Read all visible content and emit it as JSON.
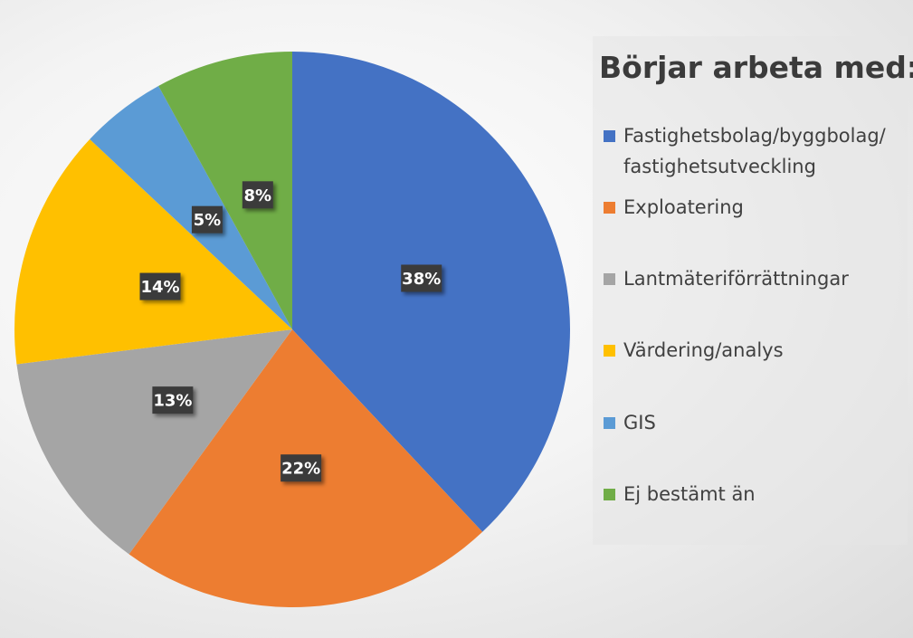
{
  "chart_data": {
    "type": "pie",
    "title": "Börjar arbeta med:",
    "categories": [
      "Fastighetsbolag/byggbolag/\nfastighetsutveckling",
      "Exploatering",
      "Lantmäteriförrättningar",
      "Värdering/analys",
      "GIS",
      "Ej bestämt än"
    ],
    "values": [
      38,
      22,
      13,
      14,
      5,
      8
    ],
    "labels": [
      "38%",
      "22%",
      "13%",
      "14%",
      "5%",
      "8%"
    ],
    "colors": [
      "#4472C4",
      "#ED7D31",
      "#A5A5A5",
      "#FFC000",
      "#5B9BD5",
      "#70AD47"
    ],
    "legend_position": "right"
  },
  "legend": {
    "items": [
      {
        "line1": "Fastighetsbolag/byggbolag/",
        "line2": "fastighetsutveckling"
      },
      {
        "line1": "Exploatering"
      },
      {
        "line1": "Lantmäteriförrättningar"
      },
      {
        "line1": "Värdering/analys"
      },
      {
        "line1": "GIS"
      },
      {
        "line1": "Ej bestämt än"
      }
    ]
  }
}
